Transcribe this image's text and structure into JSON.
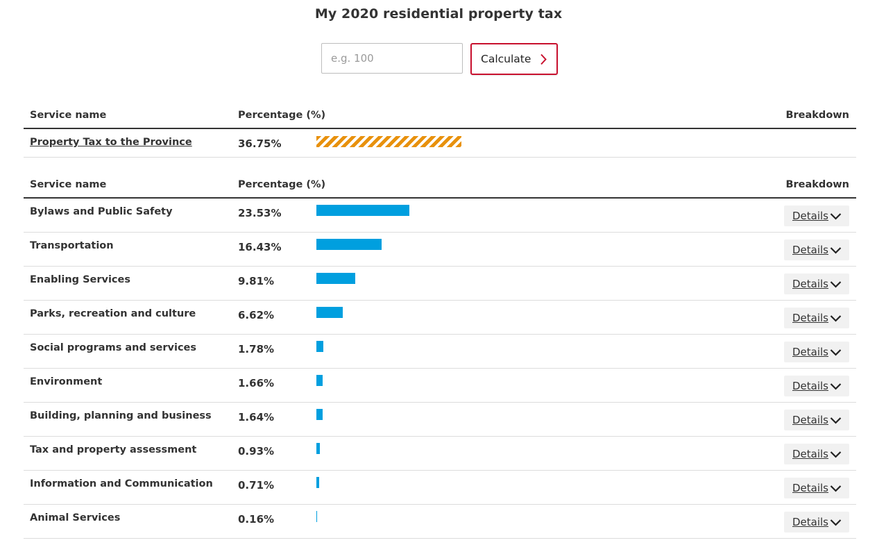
{
  "page": {
    "title": "My 2020 residential property tax"
  },
  "calculator": {
    "placeholder": "e.g. 100",
    "button_label": "Calculate",
    "button_icon": "chevron-right-icon",
    "accent": "#c8102e"
  },
  "province_table": {
    "headers": {
      "service": "Service name",
      "percentage": "Percentage (%)",
      "breakdown": "Breakdown"
    },
    "row": {
      "name": "Property Tax to the Province",
      "percent": "36.75%",
      "value": 36.75,
      "bar_style": "hatched",
      "bar_color": "#e8910c"
    }
  },
  "services_table": {
    "headers": {
      "service": "Service name",
      "percentage": "Percentage (%)",
      "breakdown": "Breakdown"
    },
    "bar_color": "#009fdf",
    "details_label": "Details",
    "details_icon": "chevron-down-icon",
    "rows": [
      {
        "name": "Bylaws and Public Safety",
        "percent": "23.53%",
        "value": 23.53
      },
      {
        "name": "Transportation",
        "percent": "16.43%",
        "value": 16.43
      },
      {
        "name": "Enabling Services",
        "percent": "9.81%",
        "value": 9.81
      },
      {
        "name": "Parks, recreation and culture",
        "percent": "6.62%",
        "value": 6.62
      },
      {
        "name": "Social programs and services",
        "percent": "1.78%",
        "value": 1.78
      },
      {
        "name": "Environment",
        "percent": "1.66%",
        "value": 1.66
      },
      {
        "name": "Building, planning and business",
        "percent": "1.64%",
        "value": 1.64
      },
      {
        "name": "Tax and property assessment",
        "percent": "0.93%",
        "value": 0.93
      },
      {
        "name": "Information and Communication",
        "percent": "0.71%",
        "value": 0.71
      },
      {
        "name": "Animal Services",
        "percent": "0.16%",
        "value": 0.16
      }
    ]
  }
}
